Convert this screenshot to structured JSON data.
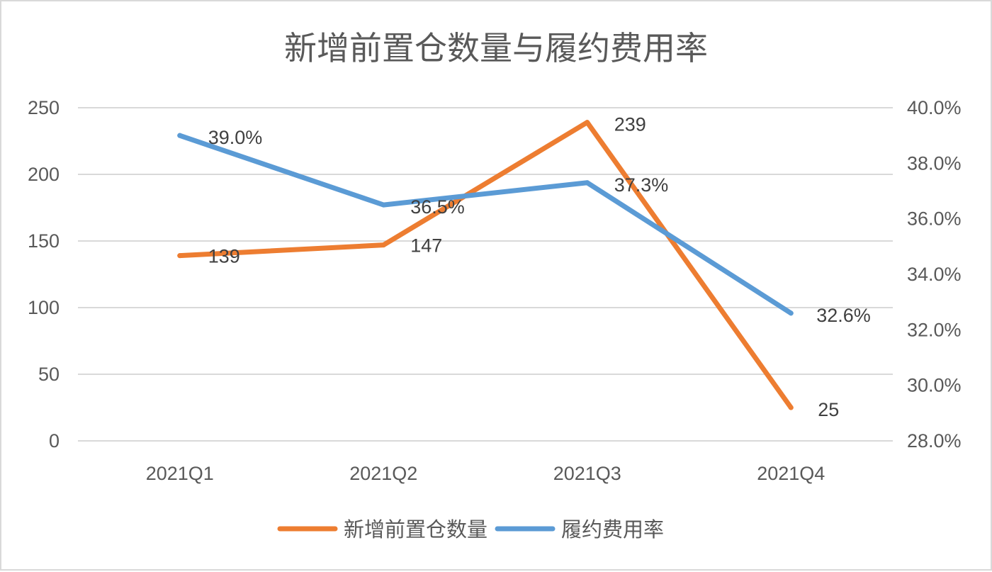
{
  "chart_data": {
    "type": "line",
    "title": "新增前置仓数量与履约费用率",
    "categories": [
      "2021Q1",
      "2021Q2",
      "2021Q3",
      "2021Q4"
    ],
    "y_left": {
      "min": 0,
      "max": 250,
      "ticks": [
        "0",
        "50",
        "100",
        "150",
        "200",
        "250"
      ]
    },
    "y_right": {
      "min": 0.28,
      "max": 0.4,
      "ticks": [
        "28.0%",
        "30.0%",
        "32.0%",
        "34.0%",
        "36.0%",
        "38.0%",
        "40.0%"
      ]
    },
    "series": [
      {
        "name": "新增前置仓数量",
        "axis": "left",
        "color": "#ED7D31",
        "values": [
          139,
          147,
          239,
          25
        ],
        "labels": [
          "139",
          "147",
          "239",
          "25"
        ]
      },
      {
        "name": "履约费用率",
        "axis": "right",
        "color": "#5B9BD5",
        "values": [
          0.39,
          0.365,
          0.373,
          0.326
        ],
        "labels": [
          "39.0%",
          "36.5%",
          "37.3%",
          "32.6%"
        ]
      }
    ],
    "grid": true,
    "legend": "bottom"
  }
}
